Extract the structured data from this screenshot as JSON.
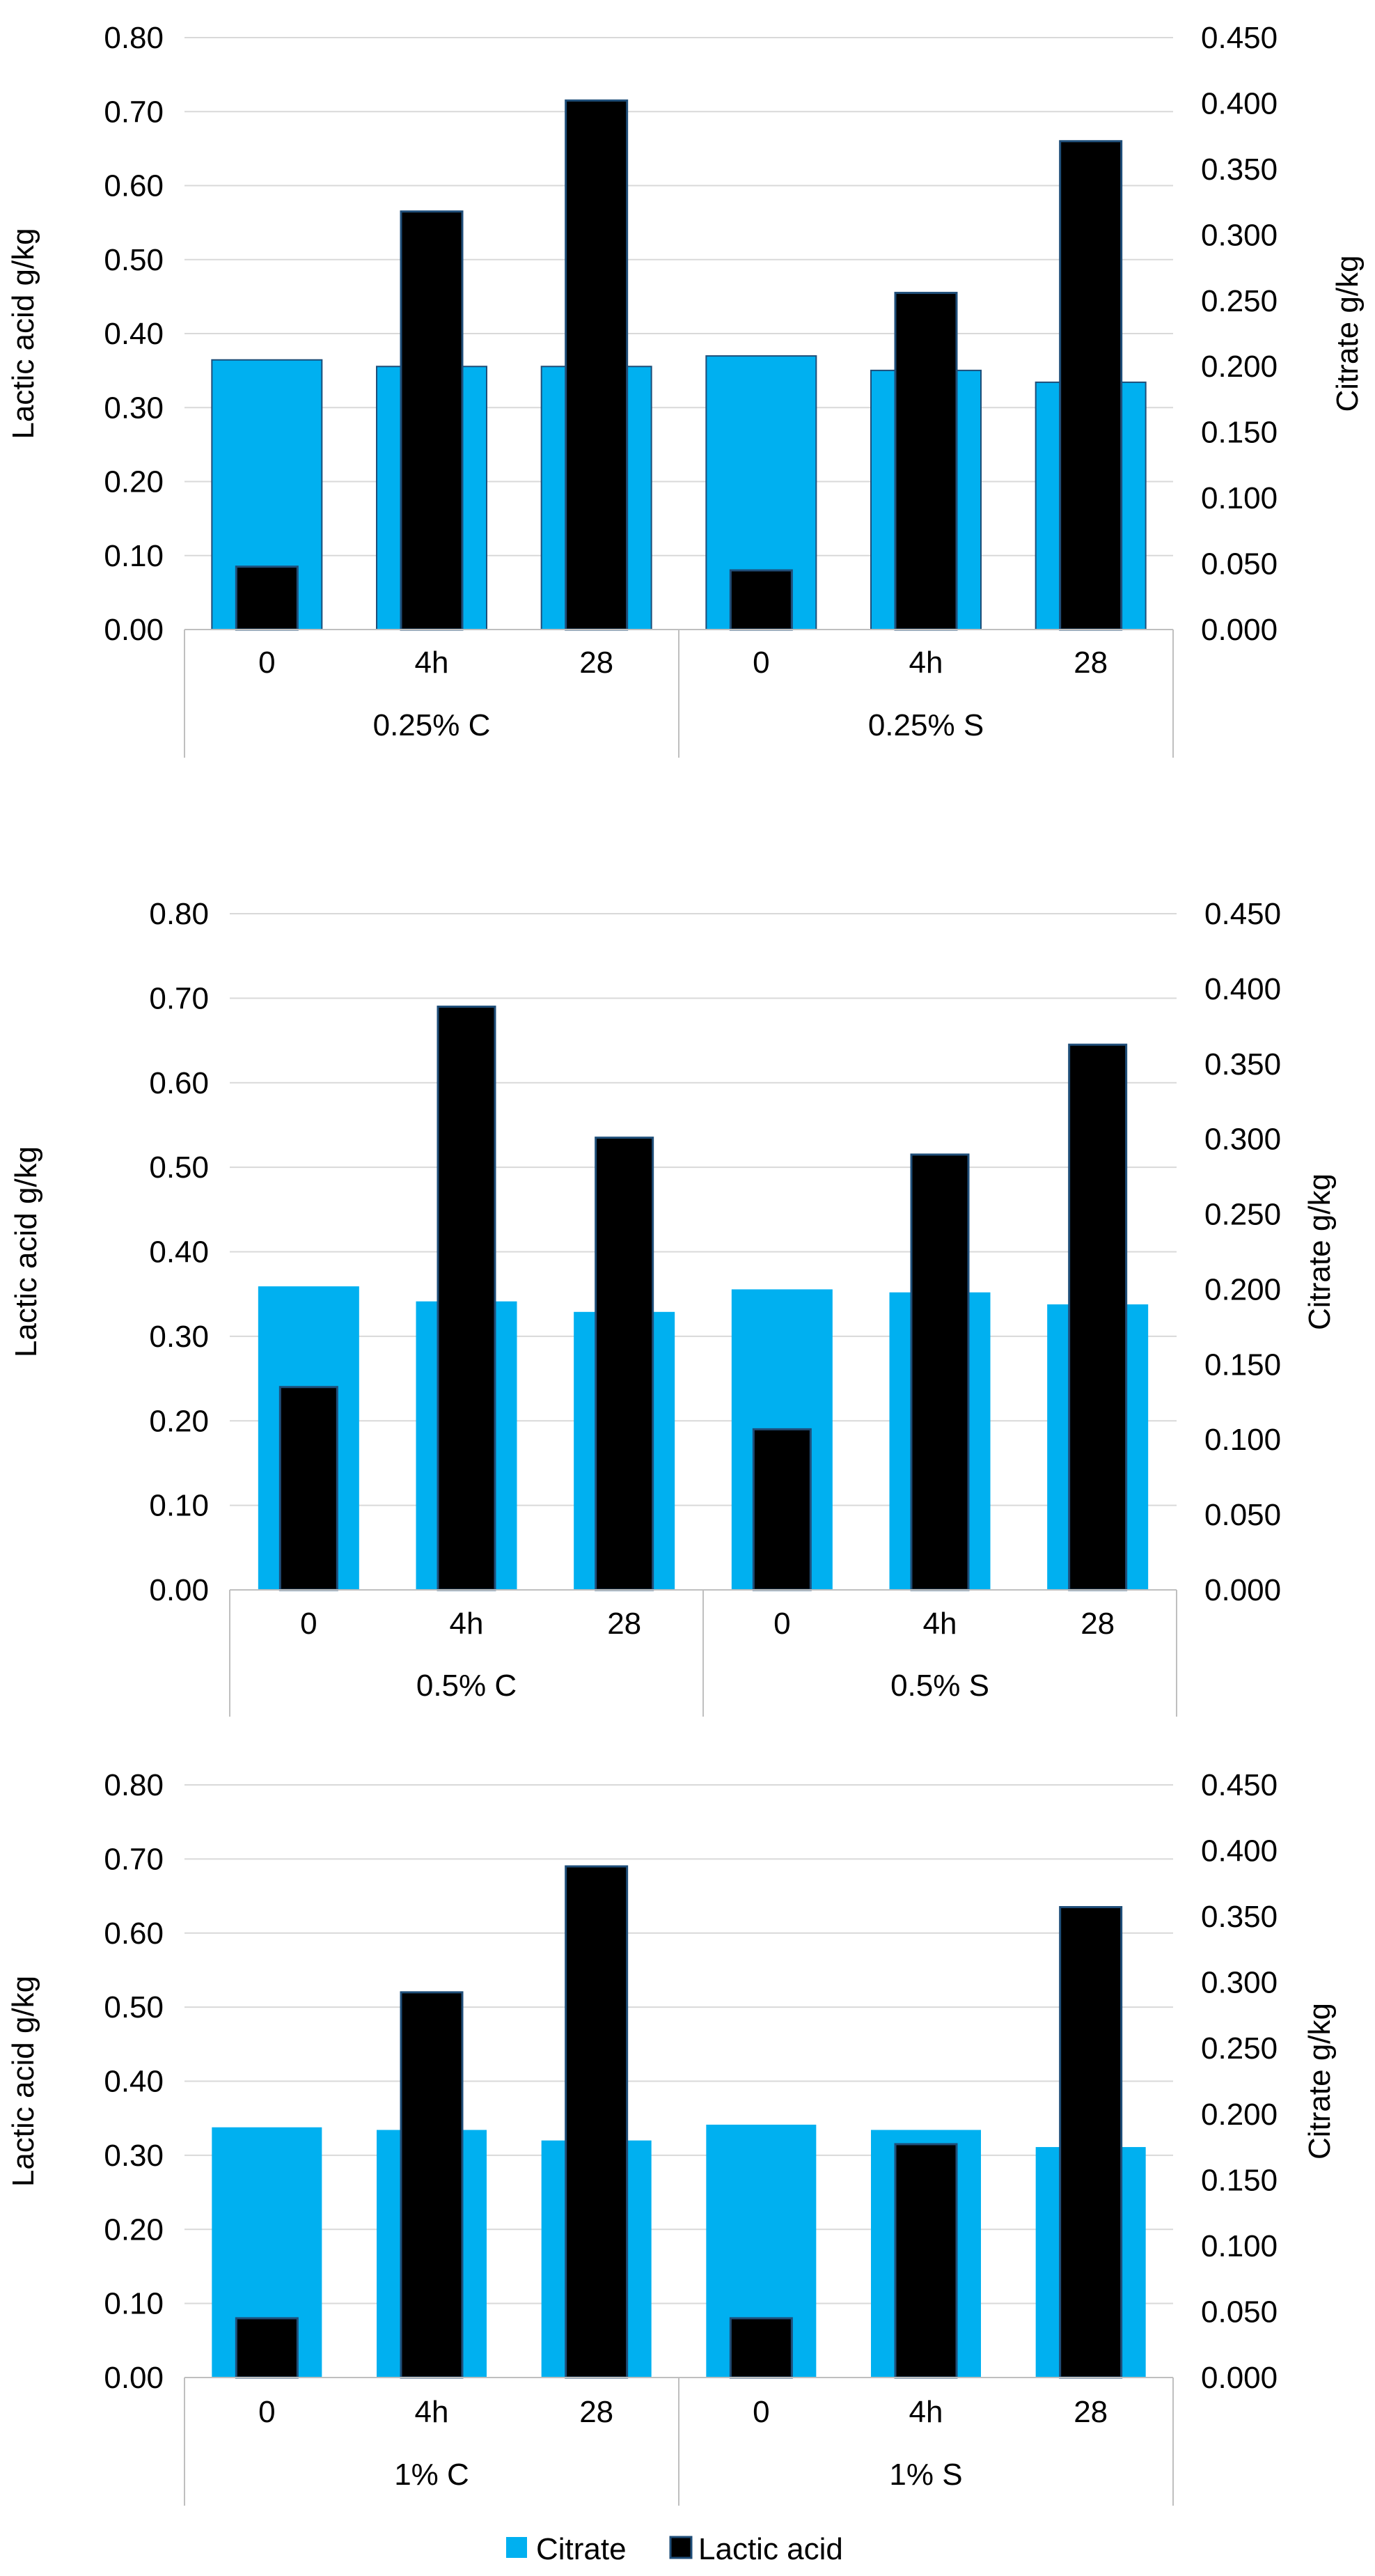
{
  "colors": {
    "citrate": "#00b0f0",
    "lactic": "#000000",
    "lactic_edge": "#1f4e79",
    "grid": "#d9d9d9",
    "divider": "#bfbfbf"
  },
  "legend": {
    "items": [
      {
        "label": "Citrate",
        "series": "citrate"
      },
      {
        "label": "Lactic acid",
        "series": "lactic"
      }
    ]
  },
  "chart_data": [
    {
      "type": "bar",
      "categories": [
        "0",
        "4h",
        "28",
        "0",
        "4h",
        "28"
      ],
      "groups": [
        {
          "label": "0.25% C",
          "count": 3
        },
        {
          "label": "0.25% S",
          "count": 3
        }
      ],
      "ylabel": "Lactic acid g/kg",
      "y2label": "Citrate g/kg",
      "ylim": [
        0,
        0.8
      ],
      "y2lim": [
        0,
        0.45
      ],
      "yticks": [
        "0.00",
        "0.10",
        "0.20",
        "0.30",
        "0.40",
        "0.50",
        "0.60",
        "0.70",
        "0.80"
      ],
      "y2ticks": [
        "0.000",
        "0.050",
        "0.100",
        "0.150",
        "0.200",
        "0.250",
        "0.300",
        "0.350",
        "0.400",
        "0.450"
      ],
      "citrate_outlined": true,
      "series": [
        {
          "name": "Citrate",
          "axis": "right",
          "values": [
            0.205,
            0.2,
            0.2,
            0.208,
            0.197,
            0.188
          ]
        },
        {
          "name": "Lactic acid",
          "axis": "left",
          "values": [
            0.085,
            0.565,
            0.715,
            0.08,
            0.455,
            0.66
          ]
        }
      ]
    },
    {
      "type": "bar",
      "categories": [
        "0",
        "4h",
        "28",
        "0",
        "4h",
        "28"
      ],
      "groups": [
        {
          "label": "0.5% C",
          "count": 3
        },
        {
          "label": "0.5% S",
          "count": 3
        }
      ],
      "ylabel": "Lactic acid g/kg",
      "y2label": "Citrate g/kg",
      "ylim": [
        0,
        0.8
      ],
      "y2lim": [
        0,
        0.45
      ],
      "yticks": [
        "0.00",
        "0.10",
        "0.20",
        "0.30",
        "0.40",
        "0.50",
        "0.60",
        "0.70",
        "0.80"
      ],
      "y2ticks": [
        "0.000",
        "0.050",
        "0.100",
        "0.150",
        "0.200",
        "0.250",
        "0.300",
        "0.350",
        "0.400",
        "0.450"
      ],
      "citrate_outlined": false,
      "series": [
        {
          "name": "Citrate",
          "axis": "right",
          "values": [
            0.202,
            0.192,
            0.185,
            0.2,
            0.198,
            0.19
          ]
        },
        {
          "name": "Lactic acid",
          "axis": "left",
          "values": [
            0.24,
            0.69,
            0.535,
            0.19,
            0.515,
            0.645
          ]
        }
      ]
    },
    {
      "type": "bar",
      "categories": [
        "0",
        "4h",
        "28",
        "0",
        "4h",
        "28"
      ],
      "groups": [
        {
          "label": "1% C",
          "count": 3
        },
        {
          "label": "1% S",
          "count": 3
        }
      ],
      "ylabel": "Lactic acid g/kg",
      "y2label": "Citrate g/kg",
      "ylim": [
        0,
        0.8
      ],
      "y2lim": [
        0,
        0.45
      ],
      "yticks": [
        "0.00",
        "0.10",
        "0.20",
        "0.30",
        "0.40",
        "0.50",
        "0.60",
        "0.70",
        "0.80"
      ],
      "y2ticks": [
        "0.000",
        "0.050",
        "0.100",
        "0.150",
        "0.200",
        "0.250",
        "0.300",
        "0.350",
        "0.400",
        "0.450"
      ],
      "citrate_outlined": false,
      "series": [
        {
          "name": "Citrate",
          "axis": "right",
          "values": [
            0.19,
            0.188,
            0.18,
            0.192,
            0.188,
            0.175
          ]
        },
        {
          "name": "Lactic acid",
          "axis": "left",
          "values": [
            0.08,
            0.52,
            0.69,
            0.08,
            0.315,
            0.635
          ]
        }
      ]
    }
  ]
}
